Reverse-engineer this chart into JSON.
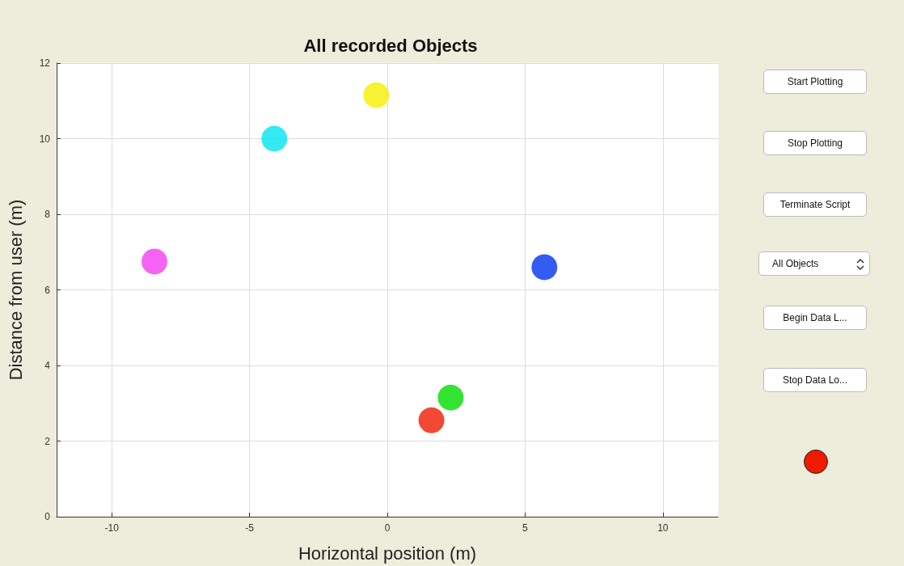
{
  "chart_data": {
    "type": "scatter",
    "title": "All recorded Objects",
    "xlabel": "Horizontal position (m)",
    "ylabel": "Distance from user (m)",
    "x": [
      -4.1,
      -0.4,
      -8.45,
      5.7,
      2.3,
      1.6
    ],
    "values": [
      10.0,
      11.15,
      6.75,
      6.6,
      3.15,
      2.55
    ],
    "colors": [
      "#00e5f0",
      "#f5f000",
      "#f43cf0",
      "#0033f0",
      "#00dd00",
      "#f01a00"
    ],
    "xlim": [
      -12,
      12
    ],
    "xticks": [
      -10,
      -5,
      0,
      5,
      10
    ],
    "ylim": [
      0,
      12
    ],
    "yticks": [
      0,
      2,
      4,
      6,
      8,
      10,
      12
    ],
    "grid": true,
    "marker": "circle",
    "annotations": [
      "Start Plotting",
      "Stop Plotting",
      "Terminate Script",
      "All Objects",
      "Begin Data L...",
      "Stop Data Lo..."
    ]
  }
}
